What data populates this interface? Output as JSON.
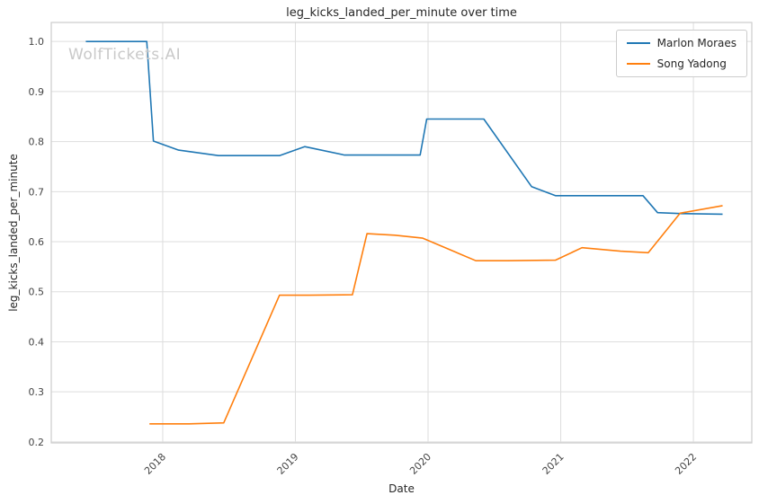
{
  "chart_data": {
    "type": "line",
    "title": "leg_kicks_landed_per_minute over time",
    "xlabel": "Date",
    "ylabel": "leg_kicks_landed_per_minute",
    "watermark": "WolfTickets.AI",
    "grid": true,
    "legend_position": "top-right",
    "xlim": [
      2017.16,
      2022.44
    ],
    "ylim": [
      0.198,
      1.038
    ],
    "xticks": [
      2018,
      2019,
      2020,
      2021,
      2022
    ],
    "yticks": [
      0.2,
      0.3,
      0.4,
      0.5,
      0.6,
      0.7,
      0.8,
      0.9,
      1.0
    ],
    "colors": {
      "grid": "#dddddd",
      "spine": "#cccccc",
      "tick_text": "#444444",
      "title_text": "#262626",
      "watermark": "#c9c9c9"
    },
    "series": [
      {
        "name": "Marlon Moraes",
        "color": "#1f77b4",
        "x": [
          2017.42,
          2017.88,
          2017.93,
          2018.12,
          2018.42,
          2018.88,
          2019.07,
          2019.37,
          2019.94,
          2019.99,
          2020.42,
          2020.78,
          2020.96,
          2021.3,
          2021.62,
          2021.73,
          2021.92,
          2022.22
        ],
        "y": [
          1.0,
          1.0,
          0.801,
          0.783,
          0.772,
          0.772,
          0.79,
          0.773,
          0.773,
          0.845,
          0.845,
          0.71,
          0.692,
          0.692,
          0.692,
          0.658,
          0.656,
          0.655
        ]
      },
      {
        "name": "Song Yadong",
        "color": "#ff7f0e",
        "x": [
          2017.9,
          2018.2,
          2018.46,
          2018.88,
          2019.1,
          2019.43,
          2019.54,
          2019.75,
          2019.96,
          2020.36,
          2020.6,
          2020.96,
          2021.16,
          2021.45,
          2021.66,
          2021.9,
          2022.22
        ],
        "y": [
          0.236,
          0.236,
          0.238,
          0.493,
          0.493,
          0.494,
          0.616,
          0.613,
          0.607,
          0.562,
          0.562,
          0.563,
          0.588,
          0.581,
          0.578,
          0.657,
          0.672
        ]
      }
    ]
  }
}
